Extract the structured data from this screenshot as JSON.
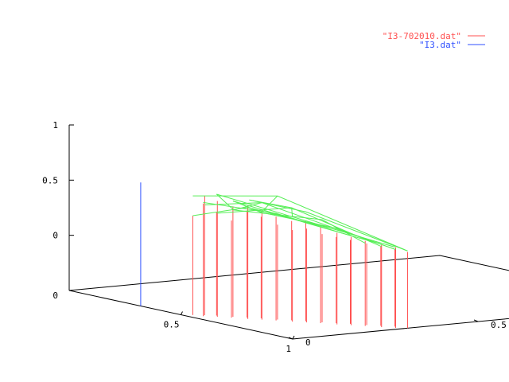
{
  "chart_data": {
    "type": "3d-impulse-surface",
    "legend": {
      "placement": "top-right",
      "entries": [
        {
          "name": "\"I3-702010.dat\"",
          "color": "#ff5050"
        },
        {
          "name": "\"I3.dat\"",
          "color": "#3050ff"
        }
      ]
    },
    "z_axis": {
      "ticks": [
        "1",
        "0.5",
        "0"
      ],
      "range": [
        -0.5,
        1
      ]
    },
    "x_axis": {
      "ticks": [
        "0",
        "0.5",
        "1"
      ],
      "range": [
        0,
        1
      ]
    },
    "y_axis": {
      "ticks": [
        "0",
        "0.5",
        "1"
      ],
      "range": [
        0,
        1
      ]
    },
    "grid": false,
    "surface_color": "#55ee55",
    "series": [
      {
        "name": "\"I3.dat\"",
        "style": "impulses",
        "color": "#3050ff",
        "points": [
          {
            "x": 0.32,
            "y": 0.0,
            "z": 0.62
          }
        ]
      },
      {
        "name": "\"I3-702010.dat\"",
        "style": "impulses",
        "color": "#ff5050",
        "points": [
          {
            "x": 0.52,
            "y": 0.02,
            "z": 0.4
          },
          {
            "x": 0.54,
            "y": 0.04,
            "z": 0.58
          },
          {
            "x": 0.55,
            "y": 0.03,
            "z": 0.52
          },
          {
            "x": 0.56,
            "y": 0.06,
            "z": 0.44
          },
          {
            "x": 0.58,
            "y": 0.05,
            "z": 0.55
          },
          {
            "x": 0.6,
            "y": 0.08,
            "z": 0.5
          },
          {
            "x": 0.61,
            "y": 0.07,
            "z": 0.38
          },
          {
            "x": 0.63,
            "y": 0.1,
            "z": 0.47
          },
          {
            "x": 0.65,
            "y": 0.09,
            "z": 0.53
          },
          {
            "x": 0.66,
            "y": 0.12,
            "z": 0.42
          },
          {
            "x": 0.68,
            "y": 0.11,
            "z": 0.49
          },
          {
            "x": 0.7,
            "y": 0.14,
            "z": 0.36
          },
          {
            "x": 0.71,
            "y": 0.13,
            "z": 0.44
          },
          {
            "x": 0.73,
            "y": 0.16,
            "z": 0.4
          },
          {
            "x": 0.75,
            "y": 0.15,
            "z": 0.33
          },
          {
            "x": 0.76,
            "y": 0.18,
            "z": 0.41
          },
          {
            "x": 0.78,
            "y": 0.17,
            "z": 0.35
          },
          {
            "x": 0.8,
            "y": 0.2,
            "z": 0.3
          },
          {
            "x": 0.81,
            "y": 0.19,
            "z": 0.37
          },
          {
            "x": 0.83,
            "y": 0.22,
            "z": 0.28
          },
          {
            "x": 0.85,
            "y": 0.21,
            "z": 0.33
          },
          {
            "x": 0.86,
            "y": 0.24,
            "z": 0.26
          },
          {
            "x": 0.88,
            "y": 0.23,
            "z": 0.3
          },
          {
            "x": 0.9,
            "y": 0.26,
            "z": 0.24
          },
          {
            "x": 0.91,
            "y": 0.25,
            "z": 0.27
          },
          {
            "x": 0.93,
            "y": 0.28,
            "z": 0.22
          },
          {
            "x": 0.95,
            "y": 0.27,
            "z": 0.25
          },
          {
            "x": 0.96,
            "y": 0.3,
            "z": 0.2
          },
          {
            "x": 0.98,
            "y": 0.29,
            "z": 0.23
          },
          {
            "x": 1.0,
            "y": 0.31,
            "z": 0.19
          }
        ]
      }
    ],
    "surface_lines": [
      [
        {
          "x": 0.52,
          "y": 0.02,
          "z": 0.58
        },
        {
          "x": 0.7,
          "y": 0.14,
          "z": 0.62
        },
        {
          "x": 1.0,
          "y": 0.31,
          "z": 0.2
        }
      ],
      [
        {
          "x": 0.54,
          "y": 0.04,
          "z": 0.5
        },
        {
          "x": 0.68,
          "y": 0.11,
          "z": 0.56
        },
        {
          "x": 0.98,
          "y": 0.29,
          "z": 0.21
        }
      ],
      [
        {
          "x": 0.56,
          "y": 0.06,
          "z": 0.6
        },
        {
          "x": 0.75,
          "y": 0.15,
          "z": 0.45
        },
        {
          "x": 0.96,
          "y": 0.3,
          "z": 0.22
        }
      ],
      [
        {
          "x": 0.58,
          "y": 0.05,
          "z": 0.44
        },
        {
          "x": 0.73,
          "y": 0.16,
          "z": 0.52
        },
        {
          "x": 0.95,
          "y": 0.27,
          "z": 0.23
        }
      ],
      [
        {
          "x": 0.6,
          "y": 0.08,
          "z": 0.55
        },
        {
          "x": 0.78,
          "y": 0.17,
          "z": 0.4
        },
        {
          "x": 0.93,
          "y": 0.28,
          "z": 0.24
        }
      ],
      [
        {
          "x": 0.62,
          "y": 0.07,
          "z": 0.48
        },
        {
          "x": 0.8,
          "y": 0.2,
          "z": 0.43
        },
        {
          "x": 0.91,
          "y": 0.25,
          "z": 0.25
        }
      ],
      [
        {
          "x": 0.64,
          "y": 0.1,
          "z": 0.57
        },
        {
          "x": 0.76,
          "y": 0.18,
          "z": 0.49
        },
        {
          "x": 1.0,
          "y": 0.31,
          "z": 0.2
        }
      ],
      [
        {
          "x": 0.66,
          "y": 0.12,
          "z": 0.46
        },
        {
          "x": 0.83,
          "y": 0.22,
          "z": 0.36
        },
        {
          "x": 0.98,
          "y": 0.29,
          "z": 0.21
        }
      ],
      [
        {
          "x": 0.55,
          "y": 0.03,
          "z": 0.53
        },
        {
          "x": 0.71,
          "y": 0.13,
          "z": 0.47
        },
        {
          "x": 0.88,
          "y": 0.23,
          "z": 0.31
        }
      ],
      [
        {
          "x": 0.52,
          "y": 0.02,
          "z": 0.4
        },
        {
          "x": 0.65,
          "y": 0.09,
          "z": 0.51
        },
        {
          "x": 0.86,
          "y": 0.24,
          "z": 0.32
        }
      ],
      [
        {
          "x": 0.7,
          "y": 0.14,
          "z": 0.62
        },
        {
          "x": 0.66,
          "y": 0.12,
          "z": 0.46
        },
        {
          "x": 0.6,
          "y": 0.08,
          "z": 0.55
        }
      ],
      [
        {
          "x": 0.75,
          "y": 0.15,
          "z": 0.45
        },
        {
          "x": 0.73,
          "y": 0.16,
          "z": 0.52
        },
        {
          "x": 0.64,
          "y": 0.1,
          "z": 0.57
        }
      ],
      [
        {
          "x": 0.56,
          "y": 0.06,
          "z": 0.6
        },
        {
          "x": 0.62,
          "y": 0.07,
          "z": 0.48
        },
        {
          "x": 0.68,
          "y": 0.11,
          "z": 0.56
        }
      ]
    ]
  }
}
